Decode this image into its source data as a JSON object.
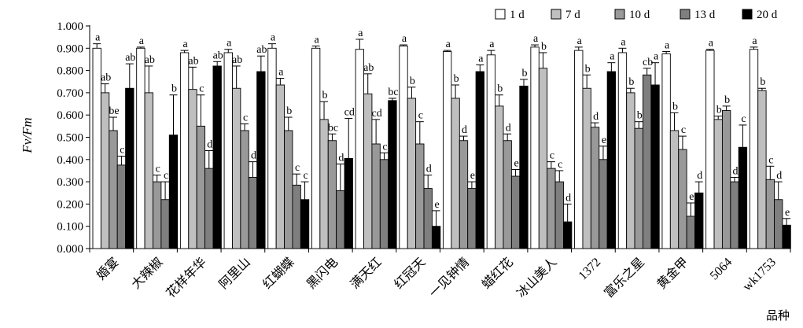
{
  "chart_data": {
    "type": "bar",
    "ylabel": "Fv/Fm",
    "xlabel": "品种",
    "ylim": [
      0,
      1.0
    ],
    "yticks": [
      "0.000",
      "0.100",
      "0.200",
      "0.300",
      "0.400",
      "0.500",
      "0.600",
      "0.700",
      "0.800",
      "0.900",
      "1.000"
    ],
    "categories": [
      "婚宴",
      "大辣椒",
      "花样年华",
      "阿里山",
      "红蝴蝶",
      "黑闪电",
      "满天红",
      "红冠天",
      "一见钟情",
      "蜡红花",
      "冰山美人",
      "1372",
      "富乐之星",
      "黄金甲",
      "5064",
      "wk1753"
    ],
    "series": [
      {
        "name": "1 d",
        "color": "#ffffff",
        "values": [
          0.9,
          0.9,
          0.88,
          0.88,
          0.9,
          0.9,
          0.895,
          0.91,
          0.885,
          0.87,
          0.905,
          0.89,
          0.88,
          0.875,
          0.89,
          0.895
        ],
        "errors": [
          0.02,
          0.005,
          0.01,
          0.015,
          0.02,
          0.01,
          0.045,
          0.005,
          0.005,
          0.02,
          0.01,
          0.015,
          0.02,
          0.01,
          0.005,
          0.01
        ],
        "letters": [
          "a",
          "a",
          "a",
          "a",
          "a",
          "a",
          "a",
          "a",
          "a",
          "a",
          "a",
          "a",
          "a",
          "a",
          "a",
          "a"
        ]
      },
      {
        "name": "7 d",
        "color": "#bfbfbf",
        "values": [
          0.7,
          0.7,
          0.715,
          0.72,
          0.735,
          0.58,
          0.695,
          0.675,
          0.675,
          0.64,
          0.81,
          0.72,
          0.7,
          0.53,
          0.58,
          0.71
        ],
        "errors": [
          0.04,
          0.12,
          0.1,
          0.1,
          0.03,
          0.08,
          0.09,
          0.05,
          0.06,
          0.05,
          0.07,
          0.06,
          0.02,
          0.08,
          0.015,
          0.01
        ],
        "letters": [
          "ab",
          "ab",
          "ab",
          "ab",
          "a",
          "b",
          "ab",
          "b",
          "b",
          "b",
          "b",
          "b",
          "b",
          "b",
          "b",
          "b"
        ]
      },
      {
        "name": "10 d",
        "color": "#999999",
        "values": [
          0.53,
          0.3,
          0.55,
          0.53,
          0.53,
          0.485,
          0.47,
          0.47,
          0.485,
          0.485,
          0.36,
          0.545,
          0.54,
          0.445,
          0.62,
          0.31
        ],
        "errors": [
          0.06,
          0.03,
          0.14,
          0.03,
          0.06,
          0.03,
          0.11,
          0.1,
          0.02,
          0.03,
          0.03,
          0.02,
          0.03,
          0.06,
          0.02,
          0.06
        ],
        "letters": [
          "be",
          "c",
          "c",
          "c",
          "b",
          "bc",
          "cd",
          "c",
          "d",
          "d",
          "c",
          "d",
          "b",
          "c",
          "b",
          "c"
        ]
      },
      {
        "name": "13 d",
        "color": "#7f7f7f",
        "values": [
          0.375,
          0.22,
          0.36,
          0.32,
          0.285,
          0.26,
          0.4,
          0.27,
          0.27,
          0.325,
          0.3,
          0.4,
          0.78,
          0.145,
          0.3,
          0.22
        ],
        "errors": [
          0.04,
          0.08,
          0.08,
          0.07,
          0.05,
          0.12,
          0.03,
          0.06,
          0.03,
          0.03,
          0.05,
          0.06,
          0.03,
          0.06,
          0.02,
          0.08
        ],
        "letters": [
          "c",
          "c",
          "d",
          "d",
          "c",
          "d",
          "c",
          "d",
          "e",
          "e",
          "c",
          "e",
          "cb",
          "e",
          "d",
          "d"
        ]
      },
      {
        "name": "20 d",
        "color": "#000000",
        "values": [
          0.72,
          0.51,
          0.82,
          0.795,
          0.22,
          0.405,
          0.665,
          0.1,
          0.795,
          0.73,
          0.12,
          0.795,
          0.735,
          0.25,
          0.455,
          0.105
        ],
        "errors": [
          0.11,
          0.18,
          0.02,
          0.07,
          0.08,
          0.18,
          0.01,
          0.07,
          0.03,
          0.03,
          0.08,
          0.04,
          0.1,
          0.05,
          0.1,
          0.03
        ],
        "letters": [
          "ab",
          "b",
          "ab",
          "ab",
          "c",
          "cd",
          "bc",
          "e",
          "a",
          "b",
          "d",
          "a",
          "a",
          "d",
          "c",
          "e"
        ]
      }
    ],
    "legend_position": "top-right"
  }
}
